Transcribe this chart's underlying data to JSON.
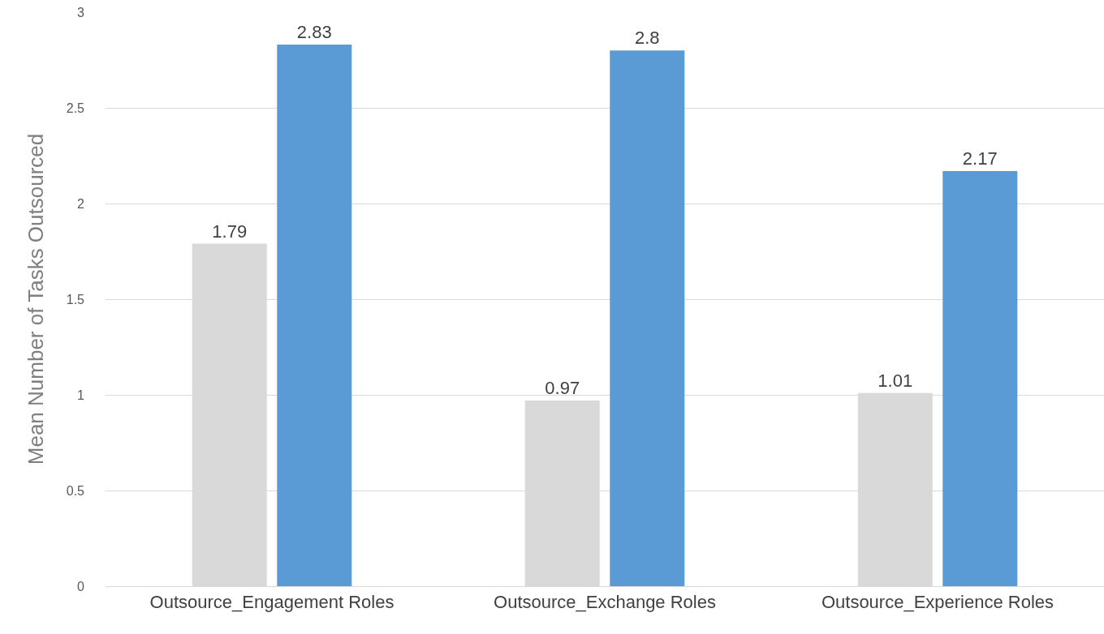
{
  "chart_data": {
    "type": "bar",
    "ylabel": "Mean Number of Tasks Outsourced",
    "categories": [
      "Outsource_Engagement Roles",
      "Outsource_Exchange Roles",
      "Outsource_Experience Roles"
    ],
    "series": [
      {
        "color": "#d9d9d9",
        "values": [
          1.79,
          0.97,
          1.01
        ]
      },
      {
        "color": "#5b9bd5",
        "values": [
          2.83,
          2.8,
          2.17
        ]
      }
    ],
    "ylim": [
      0,
      3
    ],
    "yticks": [
      0,
      0.5,
      1,
      1.5,
      2,
      2.5,
      3
    ],
    "grid": "y",
    "data_labels": true,
    "legend": false
  }
}
